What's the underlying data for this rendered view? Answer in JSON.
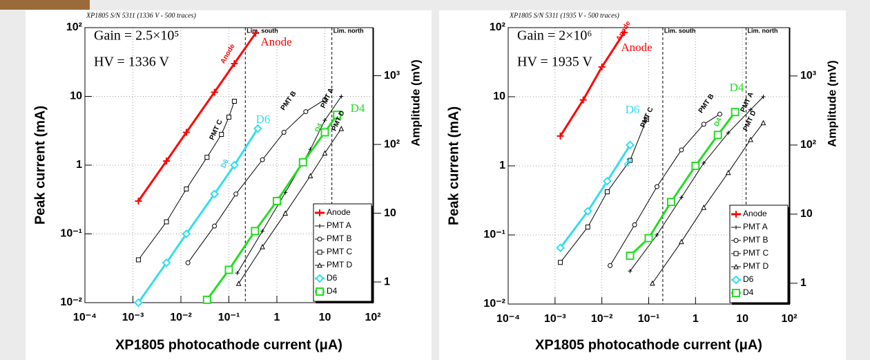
{
  "chart_data": [
    {
      "type": "line",
      "header": "XP1805 S/N 5311 (1336 V - 500 traces)",
      "text_box": [
        "Gain = 2.5×10⁵",
        "HV = 1336 V"
      ],
      "xlabel": "XP1805 photocathode current (μA)",
      "ylabel": "Peak current (mA)",
      "y2label": "Amplitude (mV)",
      "log_x": true,
      "log_y": true,
      "grid": true,
      "legend": "bottom-right",
      "xlim": [
        0.0001,
        100
      ],
      "ylim": [
        0.01,
        100
      ],
      "y2lim": [
        0.5,
        5000
      ],
      "xticks": [
        {
          "value": 0.0001,
          "label": "10⁻⁴"
        },
        {
          "value": 0.001,
          "label": "10⁻³"
        },
        {
          "value": 0.01,
          "label": "10⁻²"
        },
        {
          "value": 0.1,
          "label": "10⁻¹"
        },
        1,
        10,
        {
          "value": 100,
          "label": "10²"
        }
      ],
      "yticks": [
        {
          "value": 0.01,
          "label": "10⁻²"
        },
        {
          "value": 0.1,
          "label": "10⁻¹"
        },
        1,
        10,
        {
          "value": 100,
          "label": "10²"
        }
      ],
      "y2ticks": [
        1,
        10,
        {
          "value": 100,
          "label": "10²"
        },
        {
          "value": 1000,
          "label": "10³"
        }
      ],
      "vlines": [
        {
          "x": 0.22,
          "label": "Lim. south"
        },
        {
          "x": 14,
          "label": "Lim. north"
        }
      ],
      "annotations": [
        {
          "text": "Anode",
          "color": "#ff0000"
        },
        {
          "text": "Anode",
          "color": "#ff0000"
        },
        {
          "text": "PMT C",
          "color": "#000000"
        },
        {
          "text": "PMT B",
          "color": "#000000"
        },
        {
          "text": "PMT A",
          "color": "#000000"
        },
        {
          "text": "PMT D",
          "color": "#000000"
        },
        {
          "text": "D6",
          "color": "#33ddee"
        },
        {
          "text": "D6",
          "color": "#33ddee"
        },
        {
          "text": "D4",
          "color": "#22dd22"
        },
        {
          "text": "D4",
          "color": "#22dd22"
        }
      ],
      "series": [
        {
          "name": "Anode",
          "color": "#ff0000",
          "marker": "plus",
          "linewidth": 3,
          "x": [
            0.0013,
            0.005,
            0.013,
            0.05,
            0.13,
            0.36
          ],
          "values": [
            0.3,
            1.15,
            3,
            11.5,
            30,
            83
          ]
        },
        {
          "name": "PMT A",
          "color": "#000000",
          "marker": "plus",
          "linewidth": 1,
          "x": [
            0.15,
            0.5,
            1.5,
            5,
            10,
            22
          ],
          "values": [
            0.027,
            0.11,
            0.4,
            1.7,
            4.5,
            10
          ]
        },
        {
          "name": "PMT B",
          "color": "#000000",
          "marker": "circle",
          "linewidth": 1,
          "x": [
            0.014,
            0.05,
            0.14,
            0.5,
            1.4,
            4,
            10
          ],
          "values": [
            0.038,
            0.13,
            0.38,
            1.2,
            3,
            6,
            9
          ]
        },
        {
          "name": "PMT C",
          "color": "#000000",
          "marker": "square",
          "linewidth": 1,
          "x": [
            0.0013,
            0.005,
            0.013,
            0.035,
            0.07,
            0.1,
            0.13
          ],
          "values": [
            0.042,
            0.15,
            0.45,
            1.3,
            2.8,
            5,
            8.5
          ]
        },
        {
          "name": "PMT D",
          "color": "#000000",
          "marker": "triangle",
          "linewidth": 1,
          "x": [
            0.16,
            0.5,
            1.5,
            5,
            10,
            22
          ],
          "values": [
            0.019,
            0.065,
            0.2,
            0.7,
            1.5,
            3.4
          ]
        },
        {
          "name": "D6",
          "color": "#33ddee",
          "marker": "diamond",
          "linewidth": 3,
          "x": [
            0.0013,
            0.005,
            0.013,
            0.05,
            0.13,
            0.4
          ],
          "values": [
            0.01,
            0.038,
            0.1,
            0.38,
            1,
            3.4
          ]
        },
        {
          "name": "D4",
          "color": "#22dd22",
          "marker": "square",
          "linewidth": 3,
          "x": [
            0.035,
            0.1,
            0.35,
            1,
            3.5,
            10,
            18
          ],
          "values": [
            0.011,
            0.03,
            0.11,
            0.3,
            1.1,
            3,
            5.4
          ]
        }
      ]
    },
    {
      "type": "line",
      "header": "XP1805 S/N 5311 (1935 V - 500 traces)",
      "text_box": [
        "Gain = 2×10⁶",
        "HV = 1935 V"
      ],
      "xlabel": "XP1805 photocathode current (μA)",
      "ylabel": "Peak current (mA)",
      "y2label": "Amplitude (mV)",
      "log_x": true,
      "log_y": true,
      "grid": true,
      "legend": "bottom-right",
      "xlim": [
        0.0001,
        100
      ],
      "ylim": [
        0.01,
        100
      ],
      "y2lim": [
        0.5,
        5000
      ],
      "xticks": [
        {
          "value": 0.0001,
          "label": "10⁻⁴"
        },
        {
          "value": 0.001,
          "label": "10⁻³"
        },
        {
          "value": 0.01,
          "label": "10⁻²"
        },
        {
          "value": 0.1,
          "label": "10⁻¹"
        },
        1,
        10,
        {
          "value": 100,
          "label": "10²"
        }
      ],
      "yticks": [
        {
          "value": 0.01,
          "label": "10⁻²"
        },
        {
          "value": 0.1,
          "label": "10⁻¹"
        },
        1,
        10,
        {
          "value": 100,
          "label": "10²"
        }
      ],
      "y2ticks": [
        1,
        10,
        {
          "value": 100,
          "label": "10²"
        },
        {
          "value": 1000,
          "label": "10³"
        }
      ],
      "vlines": [
        {
          "x": 0.2,
          "label": "Lim. south"
        },
        {
          "x": 12,
          "label": "Lim. north"
        }
      ],
      "annotations": [
        {
          "text": "Anode",
          "color": "#ff0000"
        },
        {
          "text": "Anode",
          "color": "#ff0000"
        },
        {
          "text": "PMT C",
          "color": "#000000"
        },
        {
          "text": "PMT B",
          "color": "#000000"
        },
        {
          "text": "PMT A",
          "color": "#000000"
        },
        {
          "text": "PMT D",
          "color": "#000000"
        },
        {
          "text": "D6",
          "color": "#33ddee"
        },
        {
          "text": "D6",
          "color": "#33ddee"
        },
        {
          "text": "D4",
          "color": "#22dd22"
        },
        {
          "text": "D4",
          "color": "#22dd22"
        }
      ],
      "series": [
        {
          "name": "Anode",
          "color": "#ff0000",
          "marker": "plus",
          "linewidth": 3,
          "x": [
            0.0013,
            0.004,
            0.01,
            0.03
          ],
          "values": [
            2.7,
            9,
            27,
            85
          ]
        },
        {
          "name": "PMT A",
          "color": "#000000",
          "marker": "plus",
          "linewidth": 1,
          "x": [
            0.04,
            0.15,
            0.5,
            1.5,
            5,
            15,
            28
          ],
          "values": [
            0.03,
            0.1,
            0.35,
            1.1,
            3,
            6.5,
            10
          ]
        },
        {
          "name": "PMT B",
          "color": "#000000",
          "marker": "circle",
          "linewidth": 1,
          "x": [
            0.015,
            0.05,
            0.15,
            0.5,
            1.5,
            3.3
          ],
          "values": [
            0.036,
            0.14,
            0.5,
            1.7,
            4,
            5.6
          ]
        },
        {
          "name": "PMT C",
          "color": "#000000",
          "marker": "square",
          "linewidth": 1,
          "x": [
            0.0013,
            0.005,
            0.013,
            0.04,
            0.09
          ],
          "values": [
            0.04,
            0.13,
            0.42,
            1.2,
            4.7
          ]
        },
        {
          "name": "PMT D",
          "color": "#000000",
          "marker": "triangle",
          "linewidth": 1,
          "x": [
            0.12,
            0.5,
            1.5,
            5,
            15,
            28
          ],
          "values": [
            0.02,
            0.08,
            0.25,
            0.8,
            2.4,
            4.2
          ]
        },
        {
          "name": "D6",
          "color": "#33ddee",
          "marker": "diamond",
          "linewidth": 3,
          "x": [
            0.0013,
            0.005,
            0.013,
            0.04
          ],
          "values": [
            0.065,
            0.22,
            0.6,
            2
          ]
        },
        {
          "name": "D4",
          "color": "#22dd22",
          "marker": "square",
          "linewidth": 3,
          "x": [
            0.04,
            0.1,
            0.3,
            1,
            3,
            7
          ],
          "values": [
            0.05,
            0.09,
            0.3,
            1,
            2.8,
            6
          ]
        }
      ]
    }
  ]
}
